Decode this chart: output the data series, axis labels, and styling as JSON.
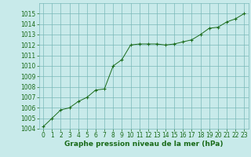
{
  "x": [
    0,
    1,
    2,
    3,
    4,
    5,
    6,
    7,
    8,
    9,
    10,
    11,
    12,
    13,
    14,
    15,
    16,
    17,
    18,
    19,
    20,
    21,
    22,
    23
  ],
  "y": [
    1004.2,
    1005.0,
    1005.8,
    1006.0,
    1006.6,
    1007.0,
    1007.7,
    1007.8,
    1010.0,
    1010.6,
    1012.0,
    1012.1,
    1012.1,
    1012.1,
    1012.0,
    1012.1,
    1012.3,
    1012.5,
    1013.0,
    1013.6,
    1013.7,
    1014.2,
    1014.5,
    1015.0
  ],
  "line_color": "#1a6b1a",
  "marker_color": "#1a6b1a",
  "bg_color": "#c8eaea",
  "grid_color": "#7ab8b8",
  "xlabel": "Graphe pression niveau de la mer (hPa)",
  "xlabel_color": "#1a6b1a",
  "tick_color": "#1a6b1a",
  "ylim": [
    1004,
    1016
  ],
  "xlim_min": -0.5,
  "xlim_max": 23.5,
  "yticks": [
    1004,
    1005,
    1006,
    1007,
    1008,
    1009,
    1010,
    1011,
    1012,
    1013,
    1014,
    1015
  ],
  "xticks": [
    0,
    1,
    2,
    3,
    4,
    5,
    6,
    7,
    8,
    9,
    10,
    11,
    12,
    13,
    14,
    15,
    16,
    17,
    18,
    19,
    20,
    21,
    22,
    23
  ],
  "tick_fontsize": 5.5,
  "xlabel_fontsize": 6.5
}
